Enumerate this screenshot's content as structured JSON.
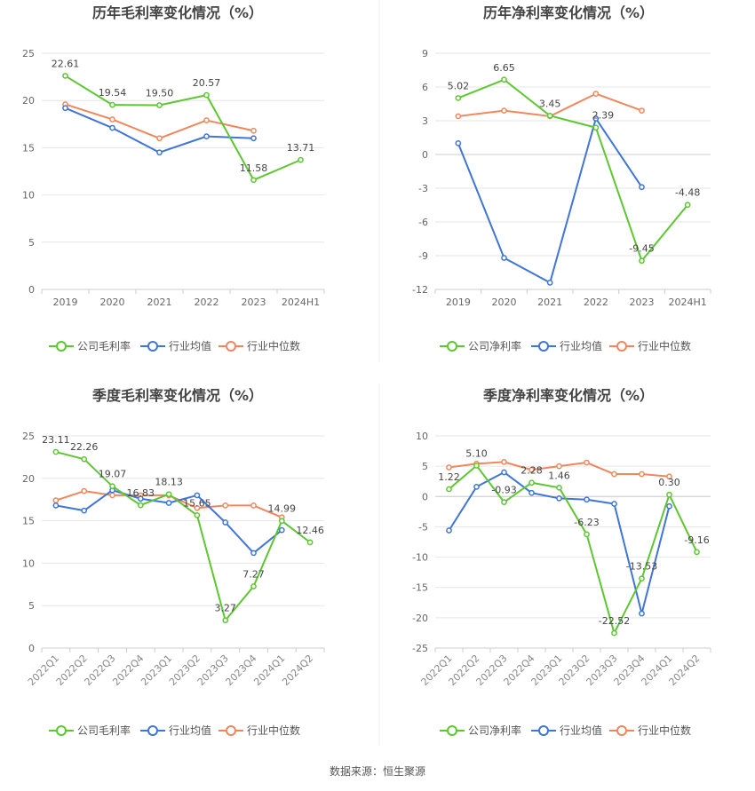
{
  "source_text": "数据来源：恒生聚源",
  "colors": {
    "company": "#5cc730",
    "avg": "#3f74d9",
    "median": "#f0875c",
    "grid": "#e6e6e6",
    "text": "#666666",
    "title": "#444444"
  },
  "chart_data": [
    {
      "type": "line",
      "title": "历年毛利率变化情况（%）",
      "categories": [
        "2019",
        "2020",
        "2021",
        "2022",
        "2023",
        "2024H1"
      ],
      "ylim": [
        0,
        25
      ],
      "yticks": [
        0,
        5,
        10,
        15,
        20,
        25
      ],
      "ytick_labels": [
        "0",
        "5",
        "10",
        "15",
        "20",
        "25"
      ],
      "rotate_labels": false,
      "legend_position": "bottom",
      "series": [
        {
          "name": "公司毛利率",
          "key": "company",
          "values": [
            22.61,
            19.54,
            19.5,
            20.57,
            11.58,
            13.71
          ],
          "labels": [
            "22.61",
            "19.54",
            "19.50",
            "20.57",
            "11.58",
            "13.71"
          ]
        },
        {
          "name": "行业均值",
          "key": "avg",
          "values": [
            19.2,
            17.1,
            14.5,
            16.2,
            16.0,
            null
          ]
        },
        {
          "name": "行业中位数",
          "key": "median",
          "values": [
            19.6,
            18.0,
            16.0,
            17.9,
            16.8,
            null
          ]
        }
      ]
    },
    {
      "type": "line",
      "title": "历年净利率变化情况（%）",
      "categories": [
        "2019",
        "2020",
        "2021",
        "2022",
        "2023",
        "2024H1"
      ],
      "ylim": [
        -12,
        9
      ],
      "yticks": [
        -12,
        -9,
        -6,
        -3,
        0,
        3,
        6,
        9
      ],
      "ytick_labels": [
        "-12",
        "-9",
        "-6",
        "-3",
        "0",
        "3",
        "6",
        "9"
      ],
      "rotate_labels": false,
      "legend_position": "bottom",
      "series": [
        {
          "name": "公司净利率",
          "key": "company",
          "values": [
            5.02,
            6.65,
            3.45,
            2.39,
            -9.45,
            -4.48
          ],
          "labels": [
            "5.02",
            "6.65",
            "3.45",
            "2.39",
            "-9.45",
            "-4.48"
          ]
        },
        {
          "name": "行业均值",
          "key": "avg",
          "values": [
            1.0,
            -9.2,
            -11.4,
            3.2,
            -2.9,
            null
          ]
        },
        {
          "name": "行业中位数",
          "key": "median",
          "values": [
            3.4,
            3.9,
            3.4,
            5.4,
            3.9,
            null
          ]
        }
      ]
    },
    {
      "type": "line",
      "title": "季度毛利率变化情况（%）",
      "categories": [
        "2022Q1",
        "2022Q2",
        "2022Q3",
        "2022Q4",
        "2023Q1",
        "2023Q2",
        "2023Q3",
        "2023Q4",
        "2024Q1",
        "2024Q2"
      ],
      "ylim": [
        0,
        25
      ],
      "yticks": [
        0,
        5,
        10,
        15,
        20,
        25
      ],
      "ytick_labels": [
        "0",
        "5",
        "10",
        "15",
        "20",
        "25"
      ],
      "rotate_labels": true,
      "legend_position": "bottom",
      "series": [
        {
          "name": "公司毛利率",
          "key": "company",
          "values": [
            23.11,
            22.26,
            19.07,
            16.83,
            18.13,
            15.65,
            3.27,
            7.27,
            14.99,
            12.46
          ],
          "labels": [
            "23.11",
            "22.26",
            "19.07",
            "16.83",
            "18.13",
            "15.65",
            "3.27",
            "7.27",
            "14.99",
            "12.46"
          ]
        },
        {
          "name": "行业均值",
          "key": "avg",
          "values": [
            16.8,
            16.2,
            18.6,
            17.6,
            17.1,
            18.0,
            14.8,
            11.2,
            13.9,
            null
          ]
        },
        {
          "name": "行业中位数",
          "key": "median",
          "values": [
            17.4,
            18.5,
            18.0,
            18.0,
            18.0,
            16.5,
            16.8,
            16.8,
            15.4,
            null
          ]
        }
      ]
    },
    {
      "type": "line",
      "title": "季度净利率变化情况（%）",
      "categories": [
        "2022Q1",
        "2022Q2",
        "2022Q3",
        "2022Q4",
        "2023Q1",
        "2023Q2",
        "2023Q3",
        "2023Q4",
        "2024Q1",
        "2024Q2"
      ],
      "ylim": [
        -25,
        10
      ],
      "yticks": [
        -25,
        -20,
        -15,
        -10,
        -5,
        0,
        5,
        10
      ],
      "ytick_labels": [
        "-25",
        "-20",
        "-15",
        "-10",
        "-5",
        "0",
        "5",
        "10"
      ],
      "rotate_labels": true,
      "legend_position": "bottom",
      "series": [
        {
          "name": "公司净利率",
          "key": "company",
          "values": [
            1.22,
            5.1,
            -0.93,
            2.28,
            1.46,
            -6.23,
            -22.52,
            -13.53,
            0.3,
            -9.16
          ],
          "labels": [
            "1.22",
            "5.10",
            "-0.93",
            "2.28",
            "1.46",
            "-6.23",
            "-22.52",
            "-13.53",
            "0.30",
            "-9.16"
          ]
        },
        {
          "name": "行业均值",
          "key": "avg",
          "values": [
            -5.6,
            1.6,
            4.0,
            0.6,
            -0.3,
            -0.5,
            -1.2,
            -19.3,
            -1.6,
            null
          ]
        },
        {
          "name": "行业中位数",
          "key": "median",
          "values": [
            4.8,
            5.4,
            5.7,
            4.4,
            5.0,
            5.6,
            3.7,
            3.7,
            3.3,
            null
          ]
        }
      ]
    }
  ]
}
